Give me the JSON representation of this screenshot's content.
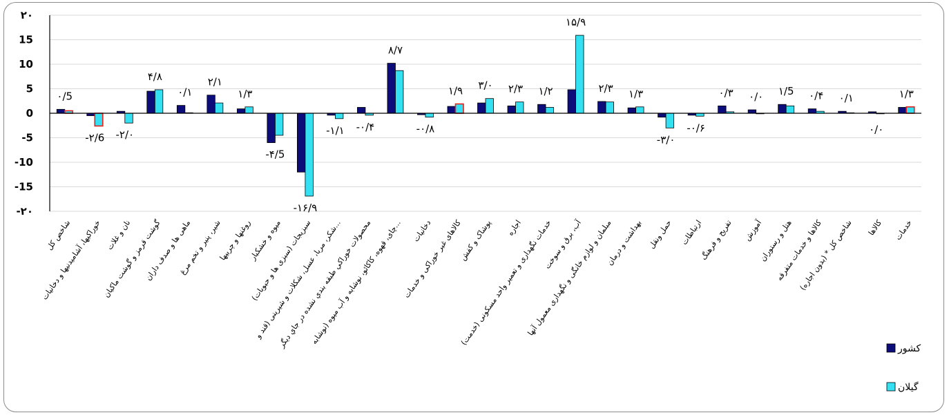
{
  "chart_data": {
    "type": "bar",
    "ylim": [
      -20,
      20
    ],
    "yticks": [
      {
        "value": 20,
        "label": "۲۰"
      },
      {
        "value": 15,
        "label": "15"
      },
      {
        "value": 10,
        "label": "10"
      },
      {
        "value": 5,
        "label": "5"
      },
      {
        "value": 0,
        "label": "0"
      },
      {
        "value": -5,
        "label": "-5"
      },
      {
        "value": -10,
        "label": "-10"
      },
      {
        "value": -15,
        "label": "-15"
      },
      {
        "value": -20,
        "label": "-۲۰"
      }
    ],
    "grid": true,
    "legend_position": "bottom-right",
    "categories": [
      "شاخص کل",
      "خوراکیها، آشامیدنیها و دخانیات",
      "نان و غلات",
      "گوشت قرمز و گوشت ماکیان",
      "ماهی ها و صدف داران",
      "شیر، پنیر و تخم مرغ",
      "روغنها و چربیها",
      "میوه و خشکبار",
      "سبزیجات (سبزی ها و حبوبات)",
      "شکر، مربا، عسل، شکلات و شیرینی (قند و...",
      "محصولات خوراکي طبقه بندي نشده در جاي ديگر",
      "چای، قهوه، کاکائو، نوشابه و آب میوه (نوشابه...",
      "دخانیات",
      "کالاهای غیر خوراکی و خدمات",
      "پوشاک و کفش",
      "اجاره",
      "خدمات نگهداری و تعمیر واحد مسکونی (خدمت)",
      "آب، برق و سوخت",
      "مبلمان و لوازم خانگی و نگهداری معمول آنها",
      "بهداشت و درمان",
      "حمل ونقل",
      "ارتباطات",
      "تفریح و فرهنگ",
      "آموزش",
      "هتل و رستوران",
      "کالاها و خدمات متفرقه",
      "شاخص کل * (بدون اجاره)",
      "کالاها",
      "خدمات"
    ],
    "series": [
      {
        "name": "کشور",
        "color": "#0c0c7a",
        "values": [
          0.8,
          -0.5,
          0.4,
          4.5,
          1.6,
          3.7,
          0.9,
          -6.0,
          -12.0,
          -0.4,
          1.2,
          10.2,
          -0.3,
          1.4,
          2.1,
          1.5,
          1.8,
          4.8,
          2.4,
          1.1,
          -0.8,
          -0.4,
          1.5,
          0.7,
          1.8,
          0.9,
          0.4,
          0.3,
          1.2
        ]
      },
      {
        "name": "گیلان",
        "color": "#33e1f2",
        "values": [
          0.5,
          -2.6,
          -2.0,
          4.8,
          0.1,
          2.1,
          1.3,
          -4.5,
          -16.9,
          -1.1,
          -0.4,
          8.7,
          -0.8,
          1.9,
          3.0,
          2.3,
          1.2,
          15.9,
          2.3,
          1.3,
          -3.0,
          -0.6,
          0.3,
          0.0,
          1.5,
          0.4,
          0.1,
          0.0,
          1.3
        ]
      }
    ],
    "data_labels": [
      "۰/5",
      "-۲/6",
      "-۲/۰",
      "۴/۸",
      "۰/۱",
      "۲/۱",
      "۱/۳",
      "-۴/5",
      "-۱۶/۹",
      "-۱/۱",
      "-۰/۴",
      "۸/۷",
      "-۰/۸",
      "۱/۹",
      "۳/۰",
      "۲/۳",
      "۱/۲",
      "۱۵/۹",
      "۲/۳",
      "۱/۳",
      "-۳/۰",
      "-۰/۶",
      "۰/۳",
      "۰/۰",
      "۱/5",
      "۰/۴",
      "۰/۱",
      "۰/۰",
      "۱/۳"
    ],
    "highlight_outline_color": "#e8201c",
    "highlighted_categories": [
      0,
      1,
      13,
      28
    ]
  }
}
